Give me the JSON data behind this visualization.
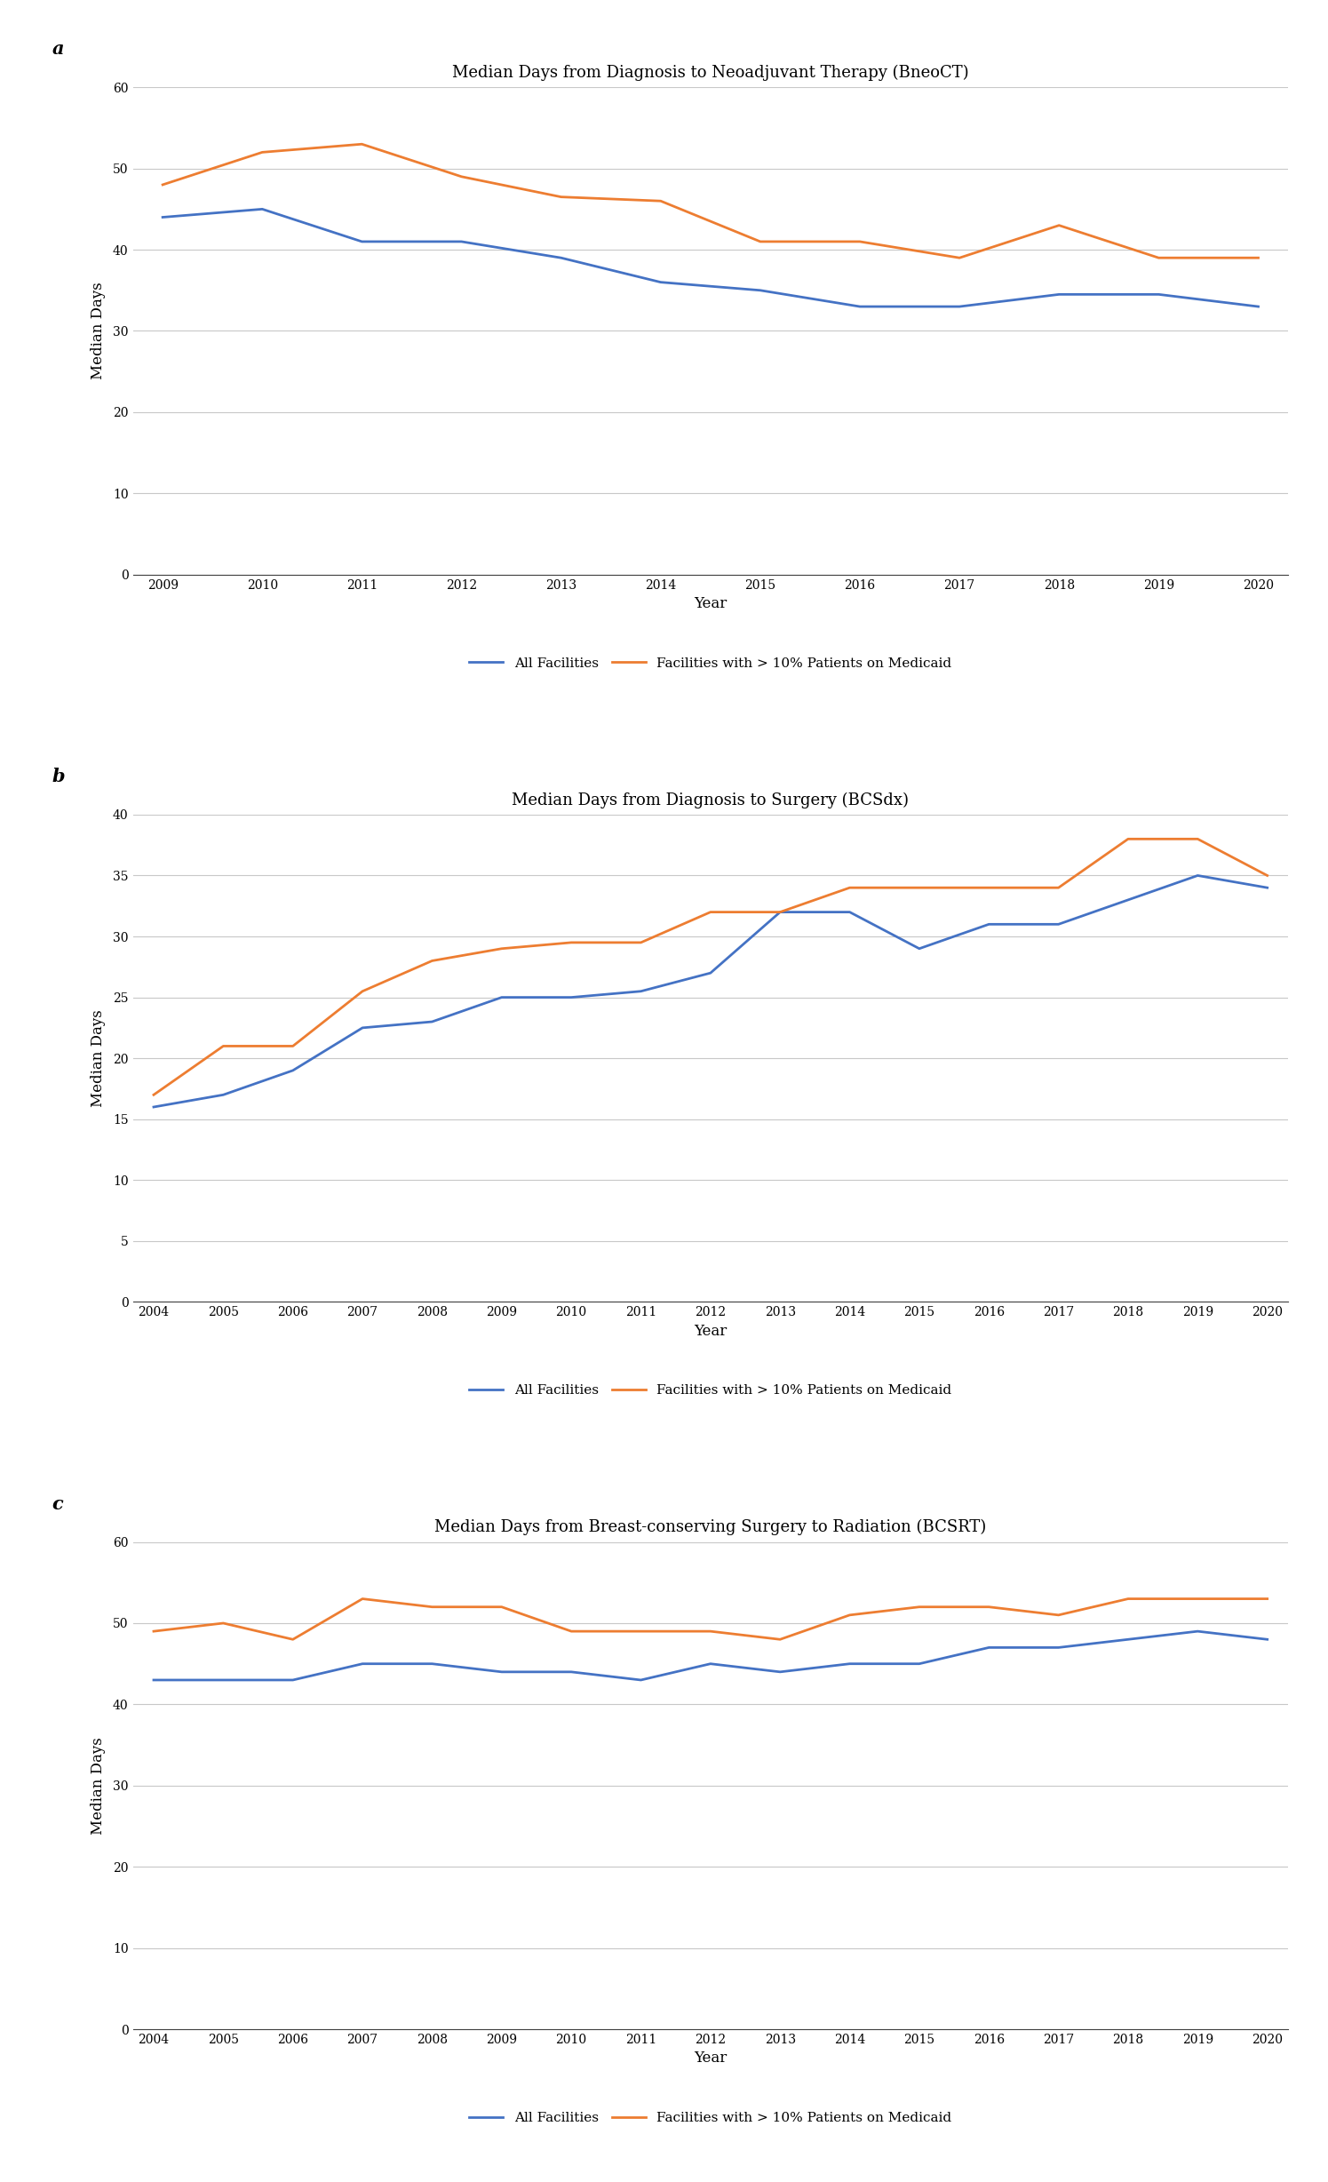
{
  "chart_a": {
    "title": "Median Days from Diagnosis to Neoadjuvant Therapy (BneoCT)",
    "years": [
      2009,
      2010,
      2011,
      2012,
      2013,
      2014,
      2015,
      2016,
      2017,
      2018,
      2019,
      2020
    ],
    "all_facilities": [
      44,
      45,
      41,
      41,
      39,
      36,
      35,
      33,
      33,
      34.5,
      34.5,
      33
    ],
    "medicaid": [
      48,
      52,
      53,
      49,
      46.5,
      46,
      41,
      41,
      39,
      43,
      39,
      39
    ],
    "ylim": [
      0,
      60
    ],
    "yticks": [
      0,
      10,
      20,
      30,
      40,
      50,
      60
    ]
  },
  "chart_b": {
    "title": "Median Days from Diagnosis to Surgery (BCSdx)",
    "years": [
      2004,
      2005,
      2006,
      2007,
      2008,
      2009,
      2010,
      2011,
      2012,
      2013,
      2014,
      2015,
      2016,
      2017,
      2018,
      2019,
      2020
    ],
    "all_facilities": [
      16,
      17,
      19,
      22.5,
      23,
      25,
      25,
      25.5,
      27,
      32,
      32,
      29,
      31,
      31,
      33,
      35,
      34
    ],
    "medicaid": [
      17,
      21,
      21,
      25.5,
      28,
      29,
      29.5,
      29.5,
      32,
      32,
      34,
      34,
      34,
      34,
      38,
      38,
      35
    ],
    "ylim": [
      0,
      40
    ],
    "yticks": [
      0,
      5,
      10,
      15,
      20,
      25,
      30,
      35,
      40
    ]
  },
  "chart_c": {
    "title": "Median Days from Breast-conserving Surgery to Radiation (BCSRT)",
    "years": [
      2004,
      2005,
      2006,
      2007,
      2008,
      2009,
      2010,
      2011,
      2012,
      2013,
      2014,
      2015,
      2016,
      2017,
      2018,
      2019,
      2020
    ],
    "all_facilities": [
      43,
      43,
      43,
      45,
      45,
      44,
      44,
      43,
      45,
      44,
      45,
      45,
      47,
      47,
      48,
      49,
      48
    ],
    "medicaid": [
      49,
      50,
      48,
      53,
      52,
      52,
      49,
      49,
      49,
      48,
      51,
      52,
      52,
      51,
      53,
      53,
      53
    ],
    "ylim": [
      0,
      60
    ],
    "yticks": [
      0,
      10,
      20,
      30,
      40,
      50,
      60
    ]
  },
  "colors": {
    "blue": "#4472C4",
    "orange": "#ED7D31"
  },
  "legend_labels": [
    "All Facilities",
    "Facilities with > 10% Patients on Medicaid"
  ],
  "ylabel": "Median Days",
  "xlabel": "Year",
  "line_width": 2.0,
  "background_color": "#ffffff",
  "grid_color": "#c8c8c8",
  "panel_labels": [
    "a",
    "b",
    "c"
  ]
}
